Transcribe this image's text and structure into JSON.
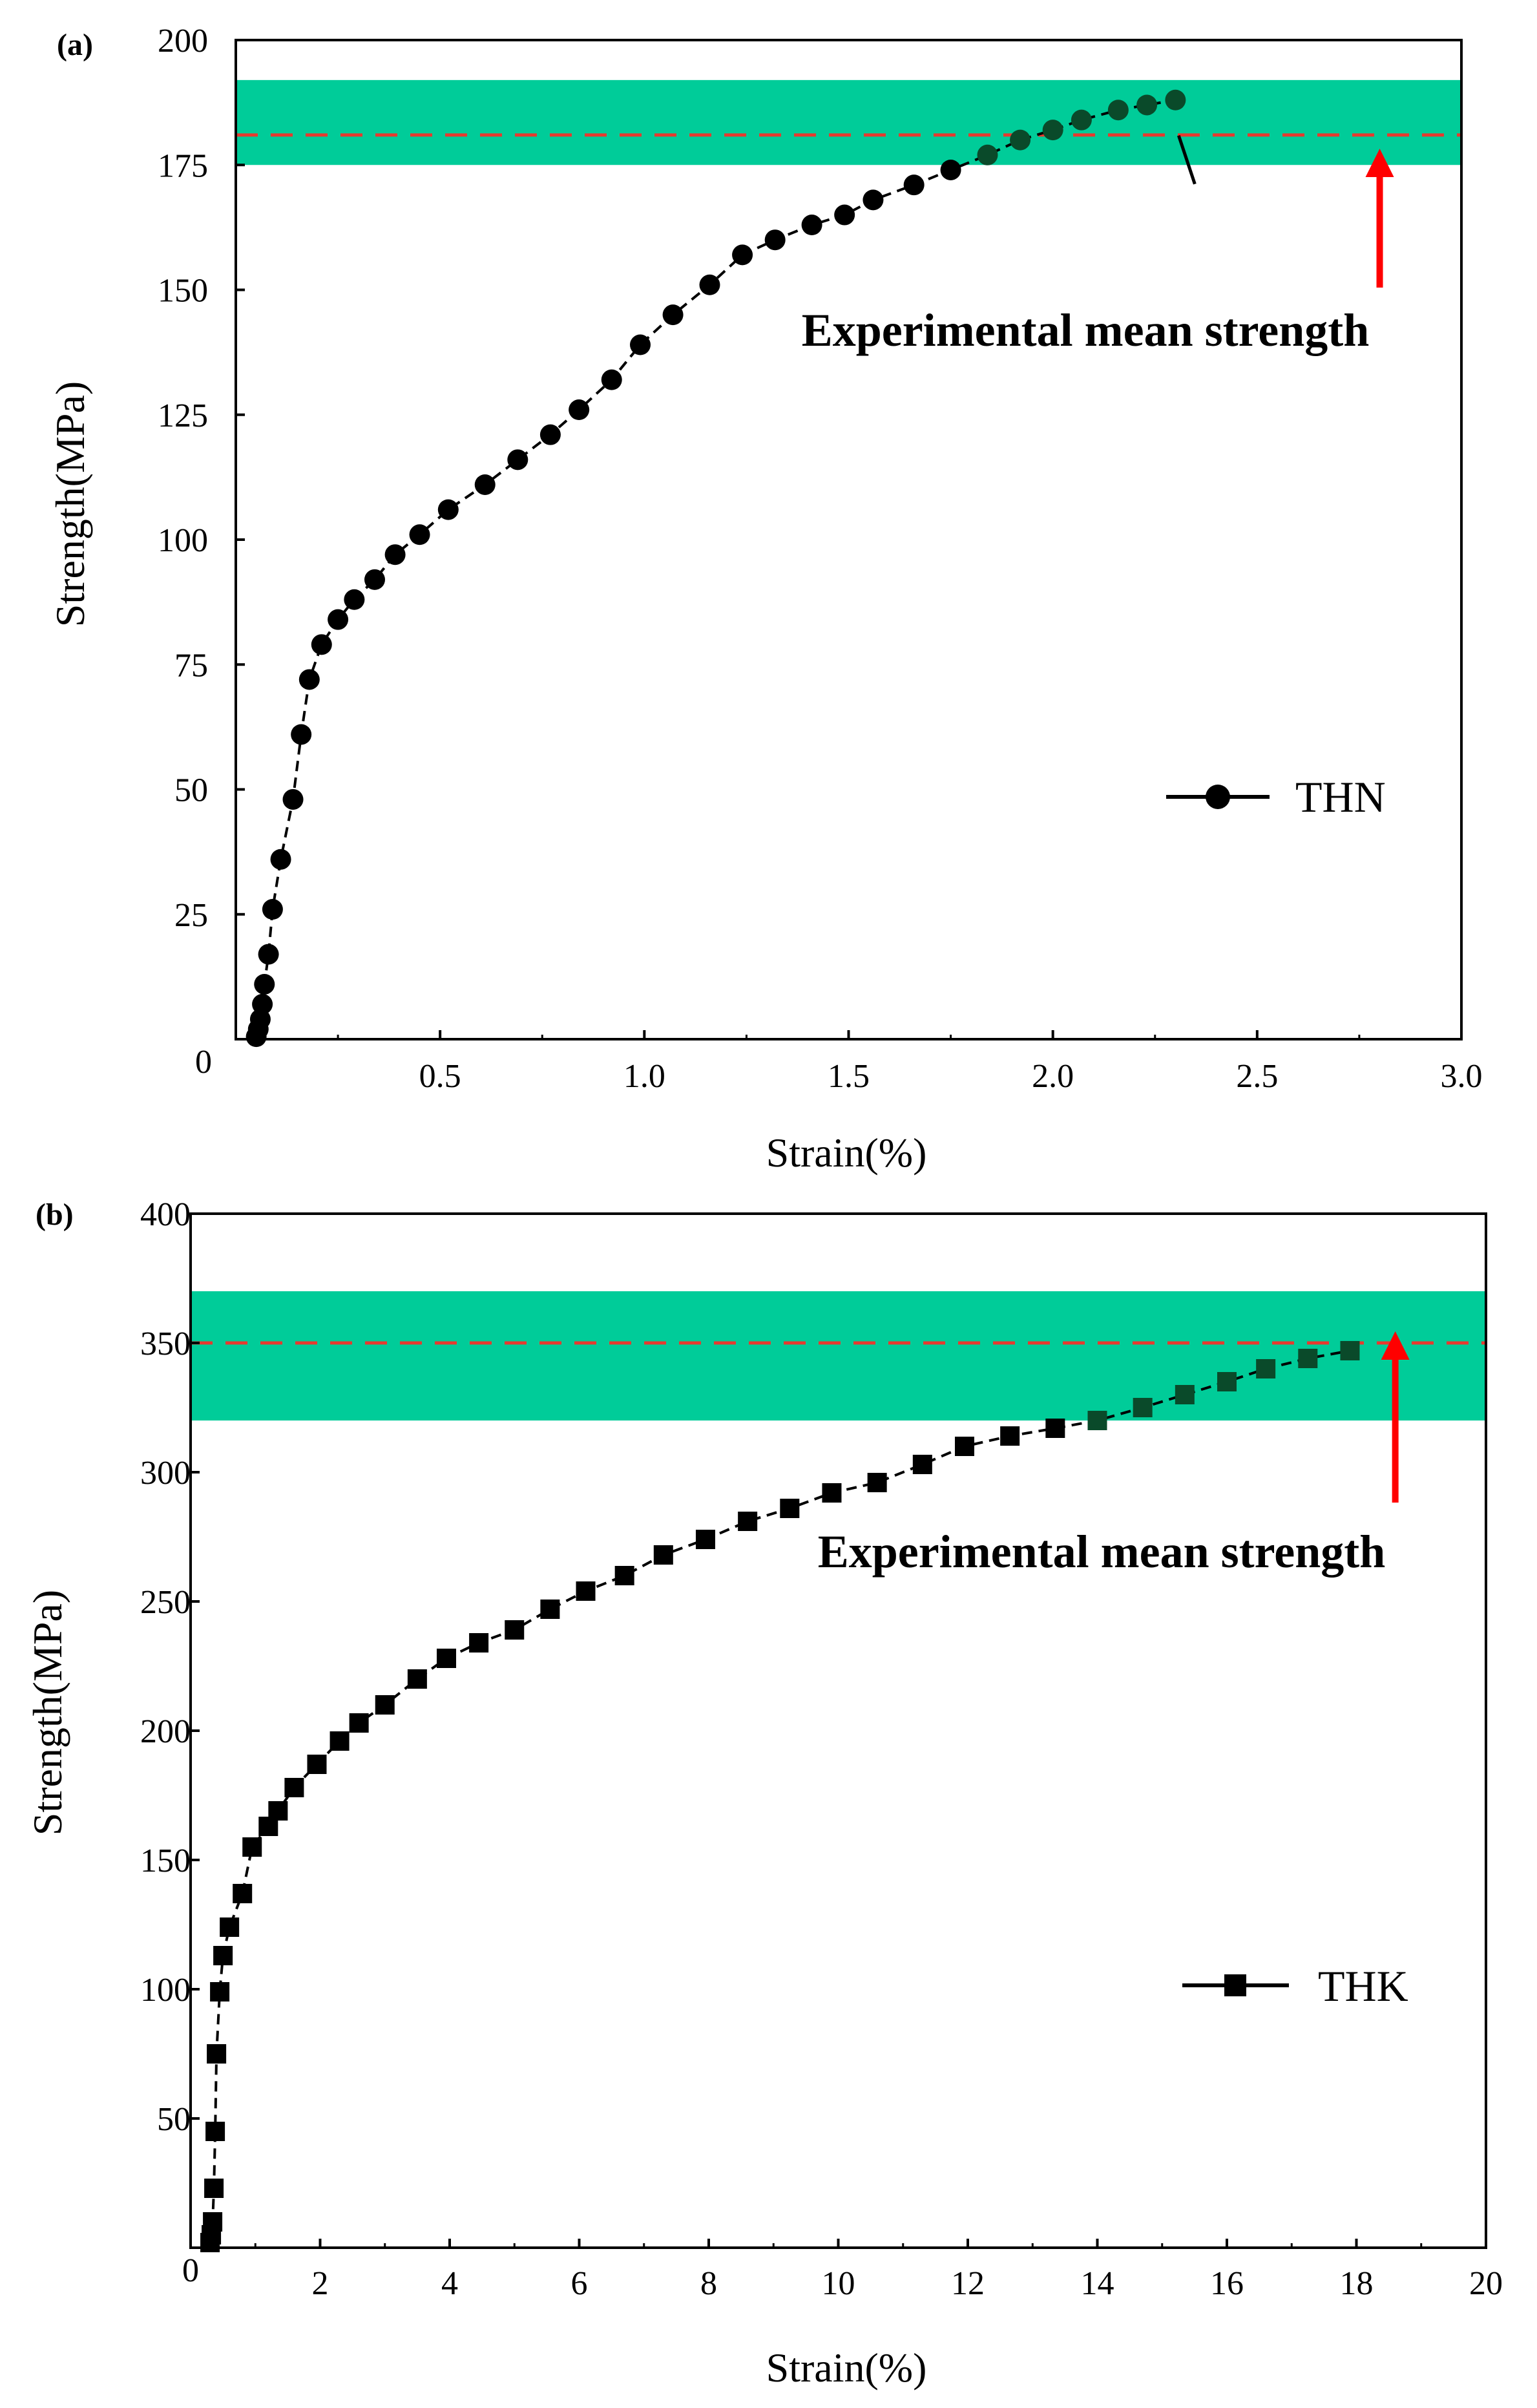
{
  "chart_data": [
    {
      "panel_label": "(a)",
      "type": "line",
      "marker": "circle",
      "xlabel": "Strain(%)",
      "ylabel": "Strength(MPa)",
      "xlim": [
        0,
        3.0
      ],
      "ylim": [
        0,
        200
      ],
      "xticks": [
        "0",
        "0.5",
        "1.0",
        "1.5",
        "2.0",
        "2.5",
        "3.0"
      ],
      "xtick_values": [
        0,
        0.5,
        1.0,
        1.5,
        2.0,
        2.5,
        3.0
      ],
      "yticks": [
        "0",
        "25",
        "50",
        "75",
        "100",
        "125",
        "150",
        "175",
        "200"
      ],
      "ytick_values": [
        0,
        25,
        50,
        75,
        100,
        125,
        150,
        175,
        200
      ],
      "band": [
        175,
        192
      ],
      "band_color": "#00cc99",
      "mean_line": 181,
      "mean_line_color": "#e8392e",
      "annotation": "Experimental mean strength",
      "arrow_color": "#ff0000",
      "arrow_x": 2.8,
      "series": [
        {
          "name": "THN",
          "x": [
            0.05,
            0.055,
            0.06,
            0.065,
            0.07,
            0.08,
            0.09,
            0.11,
            0.14,
            0.16,
            0.18,
            0.21,
            0.25,
            0.29,
            0.34,
            0.39,
            0.45,
            0.52,
            0.61,
            0.69,
            0.77,
            0.84,
            0.92,
            0.99,
            1.07,
            1.16,
            1.24,
            1.32,
            1.41,
            1.49,
            1.56,
            1.66,
            1.75,
            1.84,
            1.92,
            2.0,
            2.07,
            2.16,
            2.23,
            2.3
          ],
          "y": [
            0.5,
            2,
            4,
            7,
            11,
            17,
            26,
            36,
            48,
            61,
            72,
            79,
            84,
            88,
            92,
            97,
            101,
            106,
            111,
            116,
            121,
            126,
            132,
            139,
            145,
            151,
            157,
            160,
            163,
            165,
            168,
            171,
            174,
            177,
            180,
            182,
            184,
            186,
            187,
            188
          ],
          "x_full": [
            0.05,
            0.055,
            0.06,
            0.065,
            0.07,
            0.08,
            0.09,
            0.11,
            0.14,
            0.16,
            0.18,
            0.21,
            0.25,
            0.29,
            0.34,
            0.39,
            0.45,
            0.52,
            0.61,
            0.69,
            0.77,
            0.84,
            0.92,
            0.99,
            1.07,
            1.16,
            1.24,
            1.32,
            1.41,
            1.49,
            1.56,
            1.66,
            1.75,
            1.84,
            1.92,
            2.0,
            2.07,
            2.16,
            2.23,
            2.3
          ],
          "note": ""
        }
      ]
    },
    {
      "panel_label": "(b)",
      "type": "line",
      "marker": "square",
      "xlabel": "Strain(%)",
      "ylabel": "Strength(MPa)",
      "xlim": [
        0,
        20
      ],
      "ylim": [
        0,
        400
      ],
      "xticks": [
        "0",
        "2",
        "4",
        "6",
        "8",
        "10",
        "12",
        "14",
        "16",
        "18",
        "20"
      ],
      "xtick_values": [
        0,
        2,
        4,
        6,
        8,
        10,
        12,
        14,
        16,
        18,
        20
      ],
      "yticks": [
        "50",
        "100",
        "150",
        "200",
        "250",
        "300",
        "350",
        "400"
      ],
      "ytick_values": [
        50,
        100,
        150,
        200,
        250,
        300,
        350,
        400
      ],
      "band": [
        320,
        370
      ],
      "band_color": "#00cc99",
      "mean_line": 350,
      "mean_line_color": "#e8392e",
      "annotation": "Experimental mean strength",
      "arrow_color": "#ff0000",
      "arrow_x": 18.6,
      "series": [
        {
          "name": "THK",
          "x": [
            0.3,
            0.32,
            0.34,
            0.36,
            0.38,
            0.4,
            0.45,
            0.5,
            0.6,
            0.8,
            0.95,
            1.2,
            1.35,
            1.6,
            1.95,
            2.3,
            2.6,
            3.0,
            3.5,
            3.95,
            4.45,
            5.0,
            5.55,
            6.1,
            6.7,
            7.3,
            7.95,
            8.6,
            9.25,
            9.9,
            10.6,
            11.3,
            11.95,
            12.65,
            13.35,
            14.0,
            14.7,
            15.35,
            16.0,
            16.6,
            17.25,
            17.9
          ],
          "y": [
            2,
            5,
            10,
            23,
            45,
            75,
            99,
            113,
            124,
            137,
            155,
            163,
            169,
            178,
            187,
            196,
            203,
            210,
            220,
            228,
            234,
            239,
            247,
            254,
            260,
            268,
            274,
            281,
            286,
            292,
            296,
            303,
            310,
            314,
            317,
            320,
            325,
            330,
            335,
            340,
            344,
            347
          ],
          "note": ""
        }
      ]
    }
  ]
}
